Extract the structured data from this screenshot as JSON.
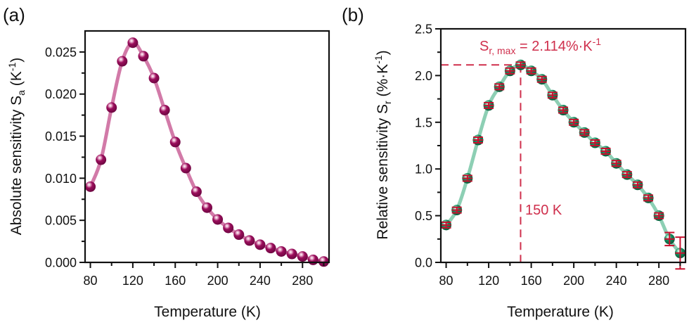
{
  "chart_data": [
    {
      "type": "line",
      "panel_label": "(a)",
      "title": "",
      "xlabel": "Temperature (K)",
      "ylabel_main": "Absolute sensitivity S",
      "ylabel_sub": "a",
      "ylabel_unit_open": " (K",
      "ylabel_unit_sup": "-1",
      "ylabel_unit_close": ")",
      "xlim": [
        75,
        305
      ],
      "ylim": [
        0,
        0.0275
      ],
      "xticks": [
        80,
        120,
        160,
        200,
        240,
        280
      ],
      "xtick_labels": [
        "80",
        "120",
        "160",
        "200",
        "240",
        "280"
      ],
      "xminor": [
        100,
        140,
        180,
        220,
        260,
        300
      ],
      "yticks": [
        0,
        0.005,
        0.01,
        0.015,
        0.02,
        0.025
      ],
      "ytick_labels": [
        "0.000",
        "0.005",
        "0.010",
        "0.015",
        "0.020",
        "0.025"
      ],
      "yminor": [
        0.0025,
        0.0075,
        0.0125,
        0.0175,
        0.0225
      ],
      "grid": false,
      "colors": {
        "marker": "#9b0e5c",
        "line": "#d27aa8"
      },
      "series": [
        {
          "name": "S_a",
          "x": [
            80,
            90,
            100,
            110,
            120,
            130,
            140,
            150,
            160,
            170,
            180,
            190,
            200,
            210,
            220,
            230,
            240,
            250,
            260,
            270,
            280,
            290,
            300
          ],
          "y": [
            0.009,
            0.0122,
            0.0184,
            0.0239,
            0.0261,
            0.0245,
            0.0219,
            0.0181,
            0.0143,
            0.0112,
            0.0084,
            0.0065,
            0.0051,
            0.0041,
            0.0033,
            0.0026,
            0.0021,
            0.0017,
            0.0013,
            0.001,
            0.0007,
            0.0003,
            0.0001
          ]
        }
      ]
    },
    {
      "type": "line",
      "panel_label": "(b)",
      "title": "",
      "xlabel": "Temperature (K)",
      "ylabel_main": "Relative sensitivity S",
      "ylabel_sub": "r",
      "ylabel_unit_open": " (%·K",
      "ylabel_unit_sup": "-1",
      "ylabel_unit_close": ")",
      "xlim": [
        75,
        305
      ],
      "ylim": [
        0,
        2.5
      ],
      "xticks": [
        80,
        120,
        160,
        200,
        240,
        280
      ],
      "xtick_labels": [
        "80",
        "120",
        "160",
        "200",
        "240",
        "280"
      ],
      "xminor": [
        100,
        140,
        180,
        220,
        260,
        300
      ],
      "yticks": [
        0,
        0.5,
        1.0,
        1.5,
        2.0,
        2.5
      ],
      "ytick_labels": [
        "0.0",
        "0.5",
        "1.0",
        "1.5",
        "2.0",
        "2.5"
      ],
      "yminor": [
        0.25,
        0.75,
        1.25,
        1.75,
        2.25
      ],
      "grid": false,
      "colors": {
        "marker": "#138a5c",
        "line": "#8dcfb4",
        "errorbar": "#c8102e",
        "annotation": "#cf2f4c"
      },
      "series": [
        {
          "name": "S_r",
          "x": [
            80,
            90,
            100,
            110,
            120,
            130,
            140,
            150,
            160,
            170,
            180,
            190,
            200,
            210,
            220,
            230,
            240,
            250,
            260,
            270,
            280,
            290,
            300
          ],
          "y": [
            0.4,
            0.56,
            0.9,
            1.31,
            1.68,
            1.88,
            2.05,
            2.114,
            2.05,
            1.96,
            1.79,
            1.63,
            1.5,
            1.39,
            1.28,
            1.19,
            1.06,
            0.94,
            0.83,
            0.69,
            0.5,
            0.25,
            0.1
          ],
          "yerr": [
            0.03,
            0.03,
            0.03,
            0.03,
            0.03,
            0.03,
            0.03,
            0.03,
            0.03,
            0.03,
            0.03,
            0.03,
            0.03,
            0.03,
            0.03,
            0.03,
            0.03,
            0.03,
            0.03,
            0.03,
            0.03,
            0.07,
            0.17
          ]
        }
      ],
      "annotations": {
        "max_label_main": "S",
        "max_label_sub": "r, max",
        "max_label_value": " = 2.114%·K",
        "max_label_sup": "-1",
        "peak_x": 150,
        "peak_y": 2.114,
        "peak_temp_label": "150 K"
      }
    }
  ]
}
